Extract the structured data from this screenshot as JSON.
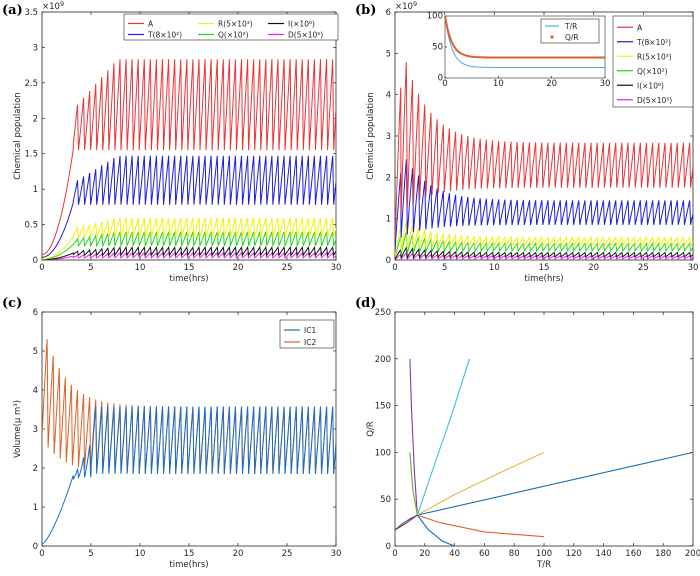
{
  "panel_labels": [
    "(a)",
    "(b)",
    "(c)",
    "(d)"
  ],
  "chart_data": [
    {
      "type": "line",
      "id": "a",
      "xlabel": "time(hrs)",
      "ylabel": "Chemical population",
      "y_exponent": "×10",
      "y_exponent_power": "9",
      "xlim": [
        0,
        30
      ],
      "ylim": [
        0,
        3.5
      ],
      "xticks": [
        "0",
        "5",
        "10",
        "15",
        "20",
        "25",
        "30"
      ],
      "yticks": [
        "0",
        "0.5",
        "1",
        "1.5",
        "2",
        "2.5",
        "3",
        "3.5"
      ],
      "legend_position": "top-right",
      "series": [
        {
          "name": "A",
          "color": "#e8363a",
          "low": 1.55,
          "high": 2.85
        },
        {
          "name": "T(8×10²)",
          "color": "#1f1fd6",
          "low": 0.78,
          "high": 1.48
        },
        {
          "name": "R(5×10³)",
          "color": "#f2f20c",
          "low": 0.32,
          "high": 0.6
        },
        {
          "name": "Q(×10²)",
          "color": "#1ed61e",
          "low": 0.2,
          "high": 0.4
        },
        {
          "name": "I(×10⁶)",
          "color": "#111111",
          "low": 0.07,
          "high": 0.18
        },
        {
          "name": "D(5×10⁵)",
          "color": "#e81ce8",
          "low": 0.03,
          "high": 0.1
        }
      ]
    },
    {
      "type": "line",
      "id": "b",
      "xlabel": "time(hrs)",
      "ylabel": "Chemical population",
      "y_exponent": "×10",
      "y_exponent_power": "9",
      "xlim": [
        0,
        30
      ],
      "ylim": [
        0,
        6
      ],
      "xticks": [
        "0",
        "5",
        "10",
        "15",
        "20",
        "25",
        "30"
      ],
      "yticks": [
        "0",
        "1",
        "2",
        "3",
        "4",
        "5",
        "6"
      ],
      "legend_position": "right",
      "series": [
        {
          "name": "A",
          "color": "#e8363a",
          "low": 1.75,
          "high": 2.85
        },
        {
          "name": "T(8×10²)",
          "color": "#1f1fd6",
          "low": 0.85,
          "high": 1.45
        },
        {
          "name": "R(5×10³)",
          "color": "#f2f20c",
          "low": 0.35,
          "high": 0.55
        },
        {
          "name": "Q(×10²)",
          "color": "#1ed61e",
          "low": 0.22,
          "high": 0.4
        },
        {
          "name": "I(×10⁶)",
          "color": "#111111",
          "low": 0.08,
          "high": 0.18
        },
        {
          "name": "D(5×10⁵)",
          "color": "#e81ce8",
          "low": 0.03,
          "high": 0.1
        }
      ],
      "inset": {
        "xlim": [
          0,
          30
        ],
        "ylim": [
          0,
          100
        ],
        "xticks": [
          "0",
          "10",
          "20",
          "30"
        ],
        "yticks": [
          "0",
          "50",
          "100"
        ],
        "series": [
          {
            "name": "T/R",
            "color": "#4da6e8",
            "start": 100,
            "end": 17
          },
          {
            "name": "Q/R",
            "color": "#d9632b",
            "start": 100,
            "end": 33
          }
        ]
      }
    },
    {
      "type": "line",
      "id": "c",
      "xlabel": "time(hrs)",
      "ylabel": "Volume(μ m³)",
      "xlim": [
        0,
        30
      ],
      "ylim": [
        0,
        6
      ],
      "xticks": [
        "0",
        "5",
        "10",
        "15",
        "20",
        "25",
        "30"
      ],
      "yticks": [
        "0",
        "1",
        "2",
        "3",
        "4",
        "5",
        "6"
      ],
      "legend_position": "top-right",
      "series": [
        {
          "name": "IC1",
          "color": "#1a6fc4",
          "low": 1.85,
          "high": 3.6
        },
        {
          "name": "IC2",
          "color": "#d9632b",
          "low": 1.85,
          "high": 3.6
        }
      ]
    },
    {
      "type": "line",
      "id": "d",
      "xlabel": "T/R",
      "ylabel": "Q/R",
      "xlim": [
        0,
        200
      ],
      "ylim": [
        0,
        250
      ],
      "xticks": [
        "0",
        "20",
        "40",
        "60",
        "80",
        "100",
        "120",
        "140",
        "160",
        "180",
        "200"
      ],
      "yticks": [
        "0",
        "50",
        "100",
        "150",
        "200",
        "250"
      ],
      "trajectories": [
        {
          "color": "#0f6fb8",
          "x": [
            0,
            5,
            10,
            15,
            200
          ],
          "y": [
            17,
            24,
            29,
            33,
            100
          ]
        },
        {
          "color": "#e0622b",
          "x": [
            15,
            30,
            60,
            100
          ],
          "y": [
            33,
            25,
            15,
            10
          ]
        },
        {
          "color": "#e8b64a",
          "x": [
            15,
            40,
            70,
            100
          ],
          "y": [
            33,
            55,
            78,
            100
          ]
        },
        {
          "color": "#7b3ea3",
          "x": [
            15,
            13,
            11,
            10
          ],
          "y": [
            33,
            80,
            150,
            200
          ]
        },
        {
          "color": "#6aaa3a",
          "x": [
            15,
            12,
            10
          ],
          "y": [
            33,
            60,
            100
          ]
        },
        {
          "color": "#4cb8e0",
          "x": [
            15,
            25,
            38,
            50
          ],
          "y": [
            33,
            80,
            140,
            200
          ]
        },
        {
          "color": "#a2242f",
          "x": [
            15,
            8,
            2,
            0
          ],
          "y": [
            33,
            25,
            19,
            17
          ]
        },
        {
          "color": "#0f6fb8",
          "x": [
            15,
            22,
            32,
            40
          ],
          "y": [
            33,
            18,
            5,
            0
          ]
        }
      ]
    }
  ]
}
